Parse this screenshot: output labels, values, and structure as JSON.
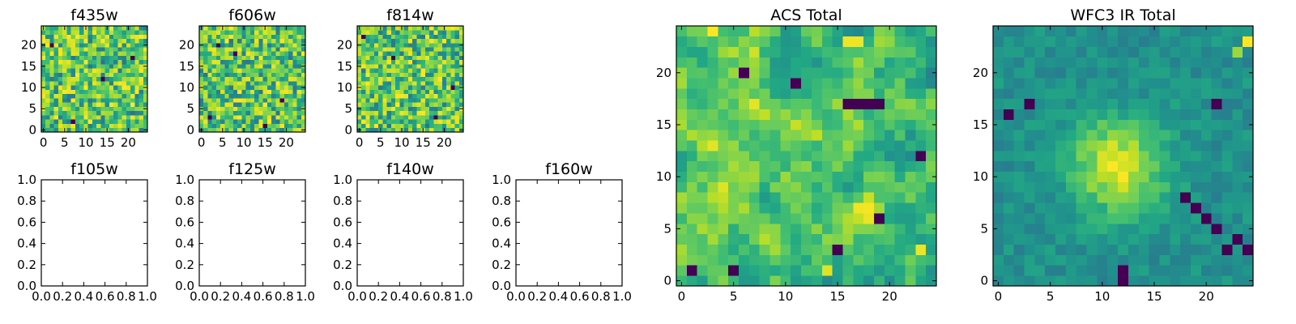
{
  "chart_data": [
    {
      "type": "heatmap",
      "title": "f435w",
      "xlabel": "",
      "ylabel": "",
      "xlim": [
        -0.5,
        24.5
      ],
      "ylim": [
        -0.5,
        24.5
      ],
      "xticks": [
        0,
        5,
        10,
        15,
        20
      ],
      "yticks": [
        0,
        5,
        10,
        15,
        20
      ],
      "xtick_labels": [
        "0",
        "5",
        "10",
        "15",
        "20"
      ],
      "ytick_labels": [
        "0",
        "5",
        "10",
        "15",
        "20"
      ],
      "colormap": "viridis",
      "grid": false,
      "grid_size": [
        25,
        25
      ],
      "texture": "noise",
      "seed": 11,
      "hot": [
        {
          "x": 3,
          "y": 8,
          "v": 0.95
        },
        {
          "x": 10,
          "y": 5,
          "v": 0.9
        }
      ],
      "cold": [
        {
          "x": 2,
          "y": 20
        },
        {
          "x": 7,
          "y": 2
        },
        {
          "x": 14,
          "y": 12
        },
        {
          "x": 21,
          "y": 17
        }
      ]
    },
    {
      "type": "heatmap",
      "title": "f606w",
      "xlabel": "",
      "ylabel": "",
      "xlim": [
        -0.5,
        24.5
      ],
      "ylim": [
        -0.5,
        24.5
      ],
      "xticks": [
        0,
        5,
        10,
        15,
        20
      ],
      "yticks": [
        0,
        5,
        10,
        15,
        20
      ],
      "xtick_labels": [
        "0",
        "5",
        "10",
        "15",
        "20"
      ],
      "ytick_labels": [
        "0",
        "5",
        "10",
        "15",
        "20"
      ],
      "colormap": "viridis",
      "grid": false,
      "grid_size": [
        25,
        25
      ],
      "texture": "noise",
      "seed": 23,
      "hot": [
        {
          "x": 9,
          "y": 11,
          "v": 0.95
        }
      ],
      "cold": [
        {
          "x": 4,
          "y": 20
        },
        {
          "x": 8,
          "y": 18
        },
        {
          "x": 2,
          "y": 3
        },
        {
          "x": 15,
          "y": 1
        },
        {
          "x": 19,
          "y": 7
        }
      ]
    },
    {
      "type": "heatmap",
      "title": "f814w",
      "xlabel": "",
      "ylabel": "",
      "xlim": [
        -0.5,
        24.5
      ],
      "ylim": [
        -0.5,
        24.5
      ],
      "xticks": [
        0,
        5,
        10,
        15,
        20
      ],
      "yticks": [
        0,
        5,
        10,
        15,
        20
      ],
      "xtick_labels": [
        "0",
        "5",
        "10",
        "15",
        "20"
      ],
      "ytick_labels": [
        "0",
        "5",
        "10",
        "15",
        "20"
      ],
      "colormap": "viridis",
      "grid": false,
      "grid_size": [
        25,
        25
      ],
      "texture": "noise",
      "seed": 37,
      "hot": [
        {
          "x": 13,
          "y": 11,
          "v": 0.95
        }
      ],
      "cold": [
        {
          "x": 1,
          "y": 22
        },
        {
          "x": 8,
          "y": 17
        },
        {
          "x": 18,
          "y": 3
        },
        {
          "x": 22,
          "y": 10
        }
      ]
    },
    {
      "type": "empty",
      "title": "f105w",
      "xlim": [
        0.0,
        1.0
      ],
      "ylim": [
        0.0,
        1.0
      ],
      "xticks": [
        0.0,
        0.2,
        0.4,
        0.6,
        0.8,
        1.0
      ],
      "yticks": [
        0.0,
        0.2,
        0.4,
        0.6,
        0.8,
        1.0
      ],
      "xtick_labels": [
        "0.0",
        "0.2",
        "0.4",
        "0.6",
        "0.8",
        "1.0"
      ],
      "ytick_labels": [
        "0.0",
        "0.2",
        "0.4",
        "0.6",
        "0.8",
        "1.0"
      ]
    },
    {
      "type": "empty",
      "title": "f125w",
      "xlim": [
        0.0,
        1.0
      ],
      "ylim": [
        0.0,
        1.0
      ],
      "xticks": [
        0.0,
        0.2,
        0.4,
        0.6,
        0.8,
        1.0
      ],
      "yticks": [
        0.0,
        0.2,
        0.4,
        0.6,
        0.8,
        1.0
      ],
      "xtick_labels": [
        "0.0",
        "0.2",
        "0.4",
        "0.6",
        "0.8",
        "1.0"
      ],
      "ytick_labels": [
        "0.0",
        "0.2",
        "0.4",
        "0.6",
        "0.8",
        "1.0"
      ]
    },
    {
      "type": "empty",
      "title": "f140w",
      "xlim": [
        0.0,
        1.0
      ],
      "ylim": [
        0.0,
        1.0
      ],
      "xticks": [
        0.0,
        0.2,
        0.4,
        0.6,
        0.8,
        1.0
      ],
      "yticks": [
        0.0,
        0.2,
        0.4,
        0.6,
        0.8,
        1.0
      ],
      "xtick_labels": [
        "0.0",
        "0.2",
        "0.4",
        "0.6",
        "0.8",
        "1.0"
      ],
      "ytick_labels": [
        "0.0",
        "0.2",
        "0.4",
        "0.6",
        "0.8",
        "1.0"
      ]
    },
    {
      "type": "empty",
      "title": "f160w",
      "xlim": [
        0.0,
        1.0
      ],
      "ylim": [
        0.0,
        1.0
      ],
      "xticks": [
        0.0,
        0.2,
        0.4,
        0.6,
        0.8,
        1.0
      ],
      "yticks": [
        0.0,
        0.2,
        0.4,
        0.6,
        0.8,
        1.0
      ],
      "xtick_labels": [
        "0.0",
        "0.2",
        "0.4",
        "0.6",
        "0.8",
        "1.0"
      ],
      "ytick_labels": [
        "0.0",
        "0.2",
        "0.4",
        "0.6",
        "0.8",
        "1.0"
      ]
    },
    {
      "type": "heatmap",
      "title": "ACS Total",
      "xlabel": "",
      "ylabel": "",
      "xlim": [
        -0.5,
        24.5
      ],
      "ylim": [
        -0.5,
        24.5
      ],
      "xticks": [
        0,
        5,
        10,
        15,
        20
      ],
      "yticks": [
        0,
        5,
        10,
        15,
        20
      ],
      "xtick_labels": [
        "0",
        "5",
        "10",
        "15",
        "20"
      ],
      "ytick_labels": [
        "0",
        "5",
        "10",
        "15",
        "20"
      ],
      "colormap": "viridis",
      "grid": false,
      "grid_size": [
        25,
        25
      ],
      "texture": "smooth-noise",
      "seed": 53,
      "hot": [
        {
          "x": 3,
          "y": 24,
          "v": 1.0
        },
        {
          "x": 16,
          "y": 23,
          "v": 0.98
        },
        {
          "x": 17,
          "y": 23,
          "v": 0.98
        },
        {
          "x": 14,
          "y": 1,
          "v": 0.95
        },
        {
          "x": 23,
          "y": 3,
          "v": 0.97
        },
        {
          "x": 13,
          "y": 14,
          "v": 0.9
        }
      ],
      "cold": [
        {
          "x": 6,
          "y": 20
        },
        {
          "x": 11,
          "y": 19
        },
        {
          "x": 16,
          "y": 17
        },
        {
          "x": 17,
          "y": 17
        },
        {
          "x": 18,
          "y": 17
        },
        {
          "x": 19,
          "y": 17
        },
        {
          "x": 23,
          "y": 12
        },
        {
          "x": 19,
          "y": 6
        },
        {
          "x": 15,
          "y": 3
        },
        {
          "x": 1,
          "y": 1
        },
        {
          "x": 5,
          "y": 1
        }
      ]
    },
    {
      "type": "heatmap",
      "title": "WFC3 IR Total",
      "xlabel": "",
      "ylabel": "",
      "xlim": [
        -0.5,
        24.5
      ],
      "ylim": [
        -0.5,
        24.5
      ],
      "xticks": [
        0,
        5,
        10,
        15,
        20
      ],
      "yticks": [
        0,
        5,
        10,
        15,
        20
      ],
      "xtick_labels": [
        "0",
        "5",
        "10",
        "15",
        "20"
      ],
      "ytick_labels": [
        "0",
        "5",
        "10",
        "15",
        "20"
      ],
      "colormap": "viridis",
      "grid": false,
      "grid_size": [
        25,
        25
      ],
      "texture": "blob",
      "seed": 71,
      "blob": {
        "x": 11.5,
        "y": 11.0,
        "sigma": 3.2,
        "amp": 0.45
      },
      "hot": [
        {
          "x": 24,
          "y": 23,
          "v": 1.0
        },
        {
          "x": 23,
          "y": 22,
          "v": 0.85
        }
      ],
      "cold": [
        {
          "x": 18,
          "y": 8
        },
        {
          "x": 19,
          "y": 7
        },
        {
          "x": 20,
          "y": 6
        },
        {
          "x": 21,
          "y": 5
        },
        {
          "x": 23,
          "y": 4
        },
        {
          "x": 22,
          "y": 3
        },
        {
          "x": 24,
          "y": 3
        },
        {
          "x": 12,
          "y": 1
        },
        {
          "x": 12,
          "y": 0
        },
        {
          "x": 3,
          "y": 17
        },
        {
          "x": 21,
          "y": 17
        },
        {
          "x": 1,
          "y": 16
        }
      ]
    }
  ]
}
